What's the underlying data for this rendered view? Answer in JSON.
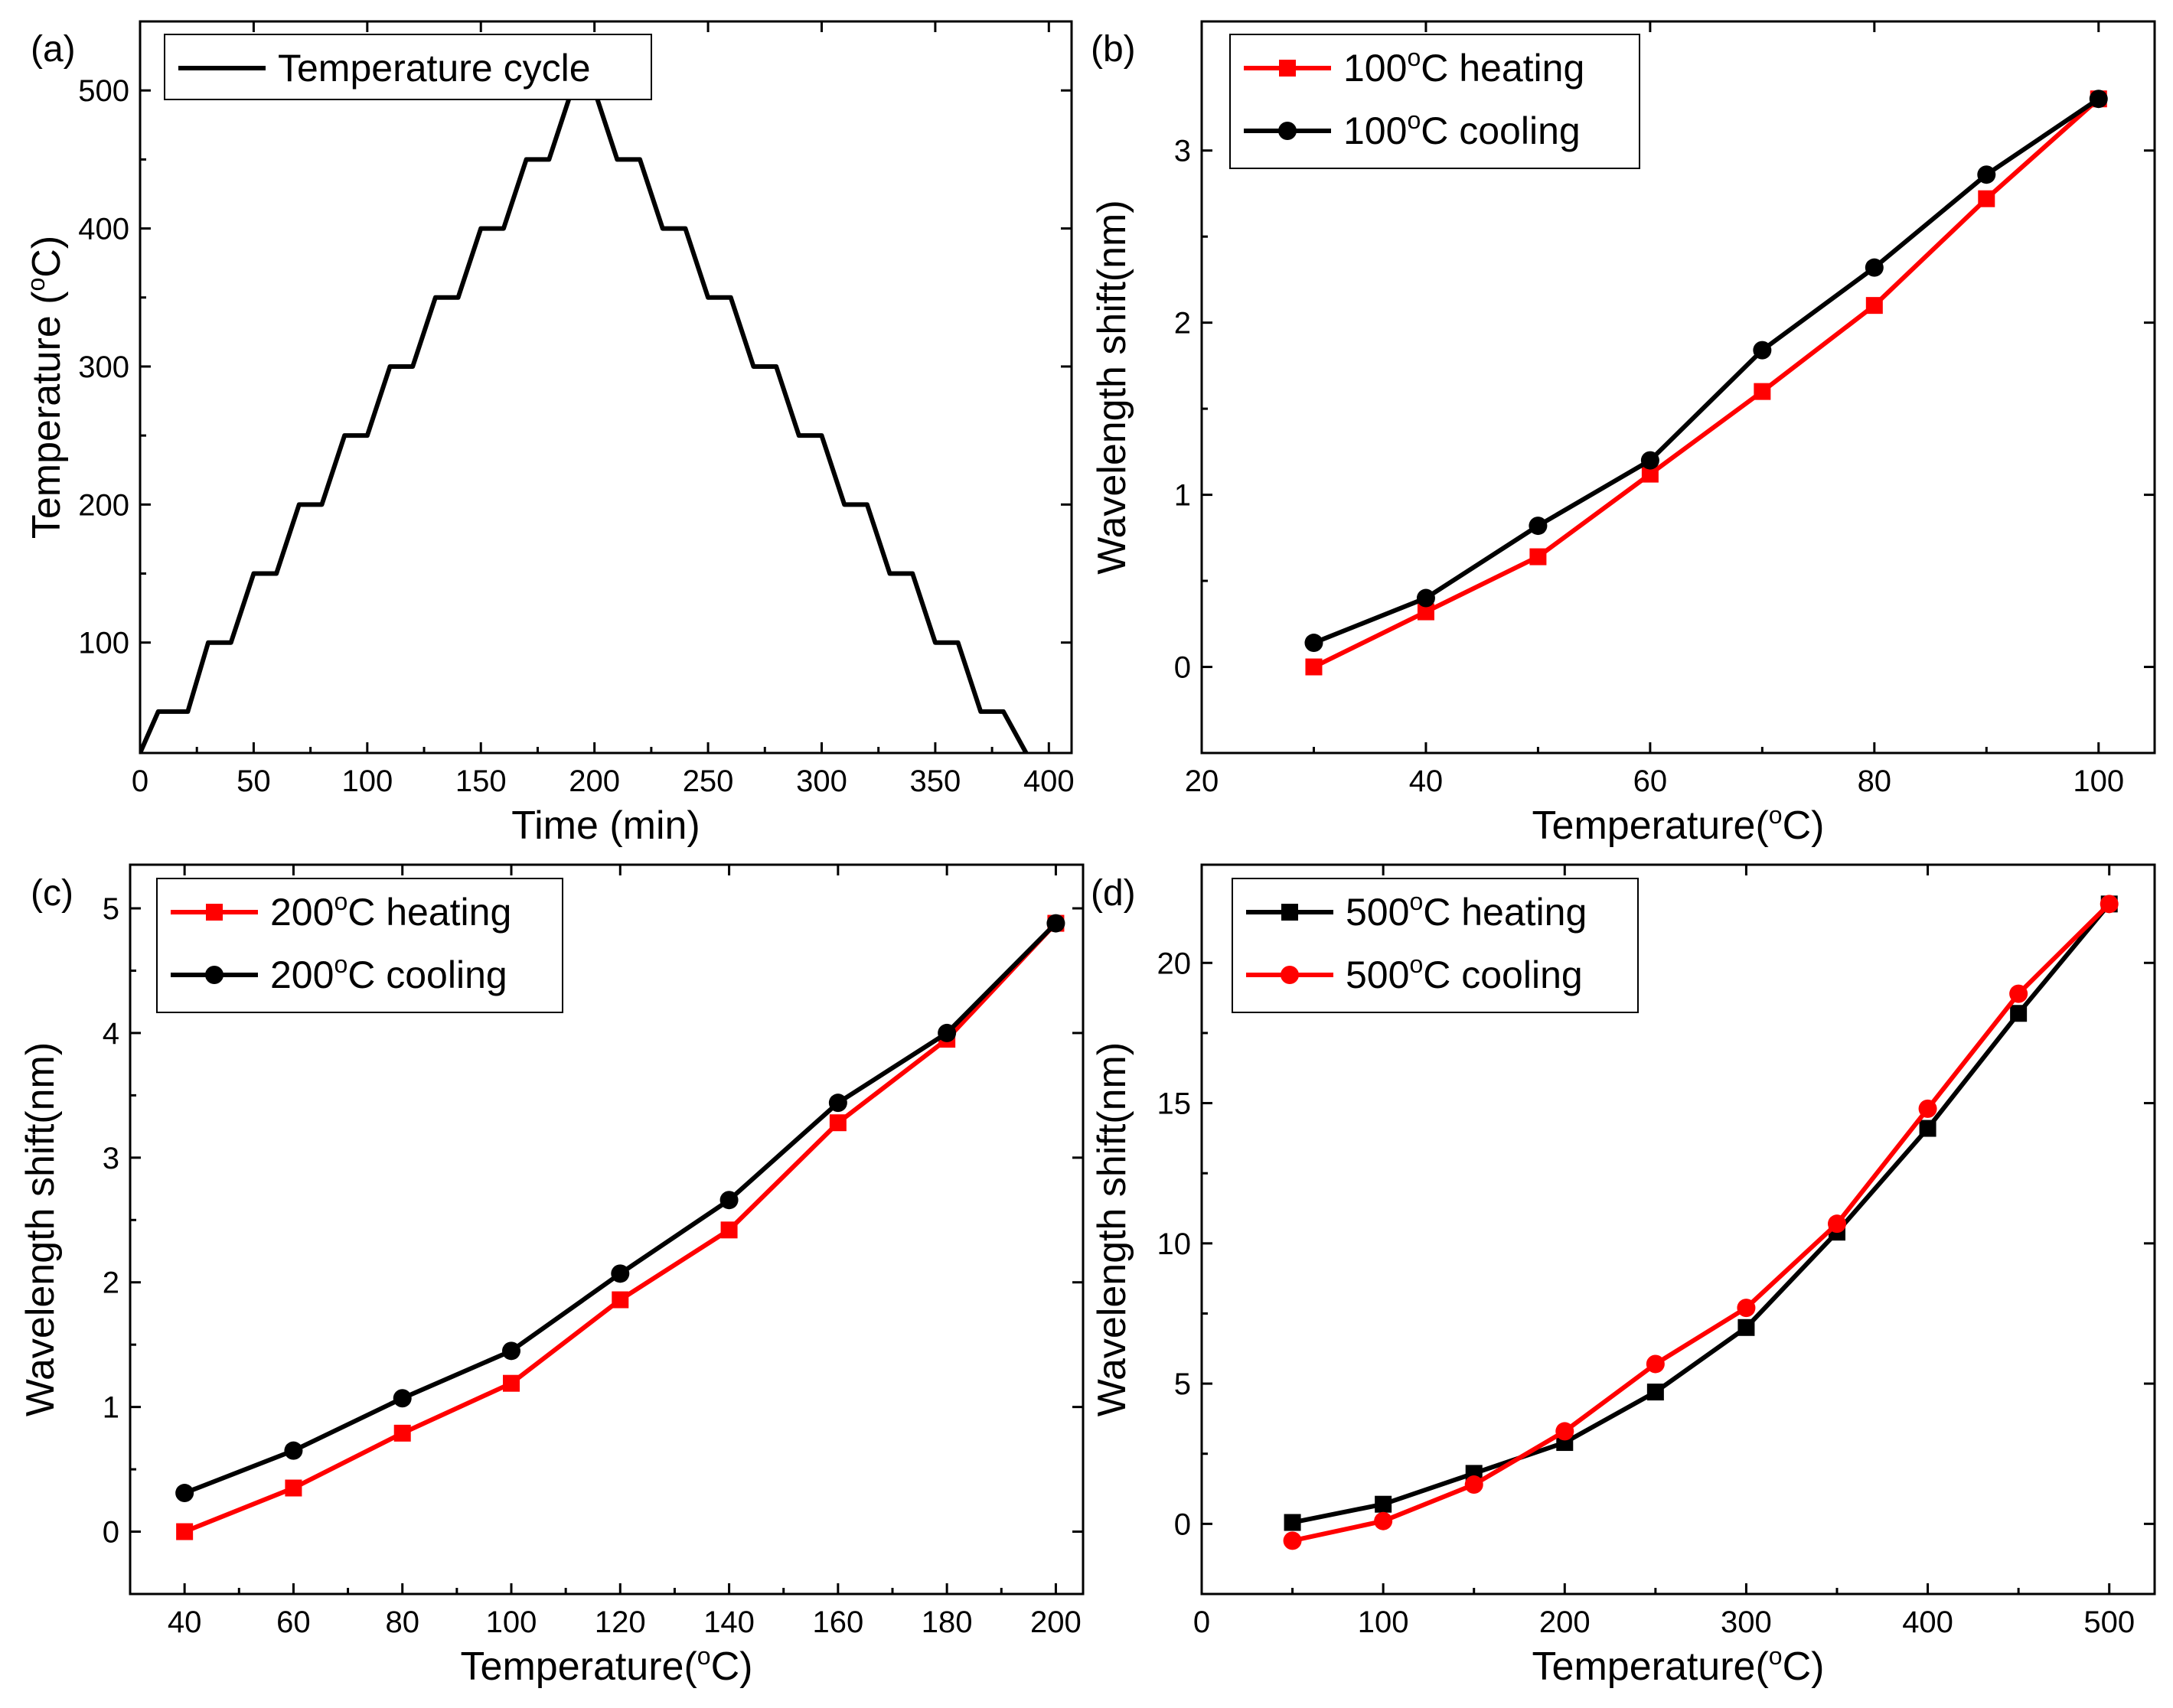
{
  "chart_data": [
    {
      "panel_label": "(a)",
      "type": "line",
      "xlabel": "Time (min)",
      "ylabel": "Temperature (°C)",
      "ylabel_main": "Temperature (",
      "ylabel_unit_sup": "o",
      "ylabel_unit": "C)",
      "xlim": [
        0,
        410
      ],
      "ylim": [
        20,
        550
      ],
      "xticks": [
        0,
        50,
        100,
        150,
        200,
        250,
        300,
        350,
        400
      ],
      "yticks": [
        100,
        200,
        300,
        400,
        500
      ],
      "legend_position": "top-left",
      "series": [
        {
          "name": "Temperature cycle",
          "color": "#000000",
          "marker": "none",
          "x": [
            0,
            8,
            21,
            30,
            40,
            50,
            60,
            70,
            80,
            90,
            100,
            110,
            120,
            130,
            140,
            150,
            160,
            170,
            180,
            190,
            200,
            210,
            220,
            230,
            240,
            250,
            260,
            270,
            280,
            290,
            300,
            310,
            320,
            330,
            340,
            350,
            360,
            370,
            380,
            390
          ],
          "y": [
            20,
            50,
            50,
            100,
            100,
            150,
            150,
            200,
            200,
            250,
            250,
            300,
            300,
            350,
            350,
            400,
            400,
            450,
            450,
            500,
            500,
            450,
            450,
            400,
            400,
            350,
            350,
            300,
            300,
            250,
            250,
            200,
            200,
            150,
            150,
            100,
            100,
            50,
            50,
            20
          ]
        }
      ]
    },
    {
      "panel_label": "(b)",
      "type": "line",
      "xlabel": "Temperature(°C)",
      "xlabel_main": "Temperature(",
      "xlabel_unit_sup": "o",
      "xlabel_unit": "C)",
      "ylabel": "Wavelength shift(nm)",
      "xlim": [
        20,
        105
      ],
      "ylim": [
        -0.5,
        3.75
      ],
      "xticks": [
        20,
        40,
        60,
        80,
        100
      ],
      "yticks": [
        0,
        1,
        2,
        3
      ],
      "legend_position": "top-left",
      "series": [
        {
          "name": "100°C heating",
          "name_prefix": "100",
          "name_suffix": "C heating",
          "color": "#ff0000",
          "marker": "square",
          "x": [
            30,
            40,
            50,
            60,
            70,
            80,
            90,
            100
          ],
          "y": [
            0.0,
            0.32,
            0.64,
            1.12,
            1.6,
            2.1,
            2.72,
            3.3
          ]
        },
        {
          "name": "100°C cooling",
          "name_prefix": "100",
          "name_suffix": "C cooling",
          "color": "#000000",
          "marker": "circle",
          "x": [
            30,
            40,
            50,
            60,
            70,
            80,
            90,
            100
          ],
          "y": [
            0.14,
            0.4,
            0.82,
            1.2,
            1.84,
            2.32,
            2.86,
            3.3
          ]
        }
      ]
    },
    {
      "panel_label": "(c)",
      "type": "line",
      "xlabel": "Temperature(°C)",
      "xlabel_main": "Temperature(",
      "xlabel_unit_sup": "o",
      "xlabel_unit": "C)",
      "ylabel": "Wavelength shift(nm)",
      "xlim": [
        30,
        205
      ],
      "ylim": [
        -0.5,
        5.35
      ],
      "xticks": [
        40,
        60,
        80,
        100,
        120,
        140,
        160,
        180,
        200
      ],
      "yticks": [
        0,
        1,
        2,
        3,
        4,
        5
      ],
      "legend_position": "top-left",
      "series": [
        {
          "name": "200°C heating",
          "name_prefix": "200",
          "name_suffix": "C heating",
          "color": "#ff0000",
          "marker": "square",
          "x": [
            40,
            60,
            80,
            100,
            120,
            140,
            160,
            180,
            200
          ],
          "y": [
            0.0,
            0.35,
            0.79,
            1.19,
            1.86,
            2.42,
            3.28,
            3.95,
            4.88
          ]
        },
        {
          "name": "200°C cooling",
          "name_prefix": "200",
          "name_suffix": "C cooling",
          "color": "#000000",
          "marker": "circle",
          "x": [
            40,
            60,
            80,
            100,
            120,
            140,
            160,
            180,
            200
          ],
          "y": [
            0.31,
            0.65,
            1.07,
            1.45,
            2.07,
            2.66,
            3.44,
            4.0,
            4.88
          ]
        }
      ]
    },
    {
      "panel_label": "(d)",
      "type": "line",
      "xlabel": "Temperature(°C)",
      "xlabel_main": "Temperature(",
      "xlabel_unit_sup": "o",
      "xlabel_unit": "C)",
      "ylabel": "Wavelength shift(nm)",
      "xlim": [
        0,
        525
      ],
      "ylim": [
        -2.5,
        23.5
      ],
      "xticks": [
        0,
        100,
        200,
        300,
        400,
        500
      ],
      "yticks": [
        0,
        5,
        10,
        15,
        20
      ],
      "legend_position": "top-left",
      "series": [
        {
          "name": "500°C heating",
          "name_prefix": "500",
          "name_suffix": "C heating",
          "color": "#000000",
          "marker": "square",
          "x": [
            50,
            100,
            150,
            200,
            250,
            300,
            350,
            400,
            450,
            500
          ],
          "y": [
            0.05,
            0.7,
            1.8,
            2.9,
            4.7,
            7.0,
            10.4,
            14.1,
            18.2,
            22.1
          ]
        },
        {
          "name": "500°C cooling",
          "name_prefix": "500",
          "name_suffix": "C cooling",
          "color": "#ff0000",
          "marker": "circle",
          "x": [
            50,
            100,
            150,
            200,
            250,
            300,
            350,
            400,
            450,
            500
          ],
          "y": [
            -0.6,
            0.1,
            1.4,
            3.3,
            5.7,
            7.7,
            10.7,
            14.8,
            18.9,
            22.1
          ]
        }
      ]
    }
  ]
}
